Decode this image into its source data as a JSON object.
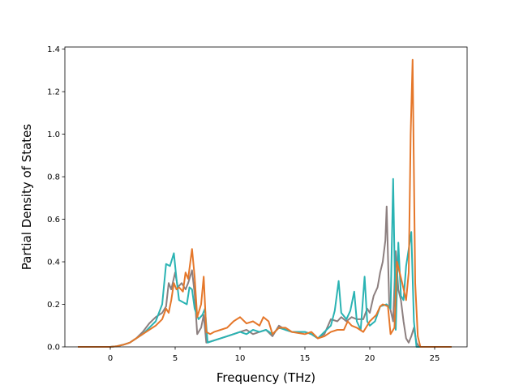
{
  "chart_data": {
    "type": "line",
    "title": "",
    "xlabel": "Frequency (THz)",
    "ylabel": "Partial Density of States",
    "xlim": [
      -3.5,
      27.5
    ],
    "ylim": [
      0.0,
      1.41
    ],
    "xticks": [
      0,
      5,
      10,
      15,
      20,
      25
    ],
    "yticks": [
      0.0,
      0.2,
      0.4,
      0.6,
      0.8,
      1.0,
      1.2,
      1.4
    ],
    "xtick_labels": [
      "0",
      "5",
      "10",
      "15",
      "20",
      "25"
    ],
    "ytick_labels": [
      "0.0",
      "0.2",
      "0.4",
      "0.6",
      "0.8",
      "1.0",
      "1.2",
      "1.4"
    ],
    "grid": false,
    "legend": "none",
    "series": [
      {
        "color": "#8c7f7f",
        "points": [
          [
            -2.5,
            0
          ],
          [
            0,
            0
          ],
          [
            0.5,
            0.003
          ],
          [
            1,
            0.01
          ],
          [
            1.5,
            0.02
          ],
          [
            2,
            0.04
          ],
          [
            2.5,
            0.07
          ],
          [
            3,
            0.11
          ],
          [
            3.5,
            0.14
          ],
          [
            4,
            0.16
          ],
          [
            4.3,
            0.19
          ],
          [
            4.5,
            0.3
          ],
          [
            4.7,
            0.27
          ],
          [
            5,
            0.35
          ],
          [
            5.2,
            0.28
          ],
          [
            5.5,
            0.3
          ],
          [
            5.8,
            0.27
          ],
          [
            6,
            0.3
          ],
          [
            6.3,
            0.36
          ],
          [
            6.5,
            0.25
          ],
          [
            6.7,
            0.06
          ],
          [
            7,
            0.09
          ],
          [
            7.2,
            0.15
          ],
          [
            7.4,
            0.02
          ],
          [
            8,
            0.03
          ],
          [
            9,
            0.05
          ],
          [
            10,
            0.07
          ],
          [
            10.5,
            0.08
          ],
          [
            11,
            0.06
          ],
          [
            11.5,
            0.07
          ],
          [
            12,
            0.08
          ],
          [
            12.5,
            0.05
          ],
          [
            13,
            0.1
          ],
          [
            13.5,
            0.08
          ],
          [
            14,
            0.07
          ],
          [
            15,
            0.07
          ],
          [
            15.5,
            0.06
          ],
          [
            16,
            0.04
          ],
          [
            16.5,
            0.06
          ],
          [
            17,
            0.13
          ],
          [
            17.5,
            0.12
          ],
          [
            17.8,
            0.14
          ],
          [
            18.2,
            0.12
          ],
          [
            18.6,
            0.14
          ],
          [
            19,
            0.13
          ],
          [
            19.5,
            0.13
          ],
          [
            19.8,
            0.18
          ],
          [
            20,
            0.16
          ],
          [
            20.3,
            0.24
          ],
          [
            20.6,
            0.28
          ],
          [
            20.8,
            0.35
          ],
          [
            21,
            0.4
          ],
          [
            21.2,
            0.5
          ],
          [
            21.3,
            0.66
          ],
          [
            21.5,
            0.2
          ],
          [
            21.8,
            0.12
          ],
          [
            22,
            0.45
          ],
          [
            22.2,
            0.27
          ],
          [
            22.4,
            0.22
          ],
          [
            22.6,
            0.12
          ],
          [
            22.8,
            0.04
          ],
          [
            23,
            0.02
          ],
          [
            23.2,
            0.05
          ],
          [
            23.4,
            0.09
          ],
          [
            23.6,
            0.02
          ],
          [
            23.8,
            0
          ],
          [
            26.3,
            0
          ]
        ]
      },
      {
        "color": "#2ab3b3",
        "points": [
          [
            -2.5,
            0
          ],
          [
            0,
            0
          ],
          [
            0.5,
            0.003
          ],
          [
            1,
            0.01
          ],
          [
            1.5,
            0.02
          ],
          [
            2,
            0.04
          ],
          [
            2.5,
            0.06
          ],
          [
            3,
            0.09
          ],
          [
            3.5,
            0.12
          ],
          [
            4,
            0.2
          ],
          [
            4.3,
            0.39
          ],
          [
            4.6,
            0.38
          ],
          [
            4.9,
            0.44
          ],
          [
            5.1,
            0.32
          ],
          [
            5.3,
            0.22
          ],
          [
            5.6,
            0.21
          ],
          [
            5.9,
            0.2
          ],
          [
            6.1,
            0.28
          ],
          [
            6.3,
            0.27
          ],
          [
            6.5,
            0.18
          ],
          [
            6.8,
            0.13
          ],
          [
            7.1,
            0.15
          ],
          [
            7.3,
            0.18
          ],
          [
            7.5,
            0.02
          ],
          [
            8,
            0.03
          ],
          [
            9,
            0.05
          ],
          [
            9.5,
            0.06
          ],
          [
            10,
            0.07
          ],
          [
            10.5,
            0.06
          ],
          [
            11,
            0.08
          ],
          [
            11.5,
            0.07
          ],
          [
            12,
            0.08
          ],
          [
            12.5,
            0.06
          ],
          [
            13,
            0.09
          ],
          [
            14,
            0.07
          ],
          [
            15,
            0.07
          ],
          [
            15.5,
            0.06
          ],
          [
            16,
            0.04
          ],
          [
            16.5,
            0.07
          ],
          [
            17,
            0.1
          ],
          [
            17.3,
            0.17
          ],
          [
            17.6,
            0.31
          ],
          [
            17.8,
            0.16
          ],
          [
            18.2,
            0.13
          ],
          [
            18.5,
            0.17
          ],
          [
            18.8,
            0.26
          ],
          [
            19,
            0.12
          ],
          [
            19.3,
            0.08
          ],
          [
            19.6,
            0.33
          ],
          [
            19.8,
            0.12
          ],
          [
            20,
            0.1
          ],
          [
            20.4,
            0.12
          ],
          [
            20.8,
            0.19
          ],
          [
            21.3,
            0.2
          ],
          [
            21.6,
            0.18
          ],
          [
            21.8,
            0.79
          ],
          [
            22,
            0.08
          ],
          [
            22.2,
            0.49
          ],
          [
            22.4,
            0.24
          ],
          [
            22.6,
            0.22
          ],
          [
            22.8,
            0.38
          ],
          [
            23,
            0.46
          ],
          [
            23.2,
            0.54
          ],
          [
            23.4,
            0.12
          ],
          [
            23.6,
            0
          ],
          [
            26.3,
            0
          ]
        ]
      },
      {
        "color": "#e5772a",
        "points": [
          [
            -2.5,
            0
          ],
          [
            0,
            0
          ],
          [
            0.5,
            0.003
          ],
          [
            1,
            0.01
          ],
          [
            1.5,
            0.02
          ],
          [
            2,
            0.04
          ],
          [
            2.5,
            0.06
          ],
          [
            3,
            0.08
          ],
          [
            3.5,
            0.1
          ],
          [
            4,
            0.13
          ],
          [
            4.3,
            0.18
          ],
          [
            4.5,
            0.16
          ],
          [
            4.7,
            0.22
          ],
          [
            4.9,
            0.3
          ],
          [
            5.1,
            0.27
          ],
          [
            5.3,
            0.28
          ],
          [
            5.6,
            0.26
          ],
          [
            5.8,
            0.35
          ],
          [
            6,
            0.32
          ],
          [
            6.3,
            0.46
          ],
          [
            6.5,
            0.33
          ],
          [
            6.7,
            0.14
          ],
          [
            7,
            0.2
          ],
          [
            7.2,
            0.33
          ],
          [
            7.4,
            0.07
          ],
          [
            7.7,
            0.06
          ],
          [
            8,
            0.07
          ],
          [
            8.5,
            0.08
          ],
          [
            9,
            0.09
          ],
          [
            9.5,
            0.12
          ],
          [
            10,
            0.14
          ],
          [
            10.5,
            0.11
          ],
          [
            11,
            0.12
          ],
          [
            11.5,
            0.1
          ],
          [
            11.8,
            0.14
          ],
          [
            12.2,
            0.12
          ],
          [
            12.5,
            0.06
          ],
          [
            13,
            0.09
          ],
          [
            13.5,
            0.09
          ],
          [
            14,
            0.07
          ],
          [
            15,
            0.06
          ],
          [
            15.5,
            0.07
          ],
          [
            16,
            0.04
          ],
          [
            16.5,
            0.05
          ],
          [
            17,
            0.07
          ],
          [
            17.5,
            0.08
          ],
          [
            18,
            0.08
          ],
          [
            18.3,
            0.12
          ],
          [
            18.6,
            0.1
          ],
          [
            19,
            0.09
          ],
          [
            19.5,
            0.07
          ],
          [
            20,
            0.12
          ],
          [
            20.5,
            0.15
          ],
          [
            20.8,
            0.19
          ],
          [
            21,
            0.2
          ],
          [
            21.4,
            0.19
          ],
          [
            21.6,
            0.06
          ],
          [
            21.9,
            0.09
          ],
          [
            22.1,
            0.4
          ],
          [
            22.3,
            0.35
          ],
          [
            22.5,
            0.3
          ],
          [
            22.8,
            0.22
          ],
          [
            23,
            0.35
          ],
          [
            23.15,
            1.0
          ],
          [
            23.3,
            1.35
          ],
          [
            23.5,
            0.3
          ],
          [
            23.7,
            0.05
          ],
          [
            23.9,
            0
          ],
          [
            26.3,
            0
          ]
        ]
      }
    ]
  }
}
